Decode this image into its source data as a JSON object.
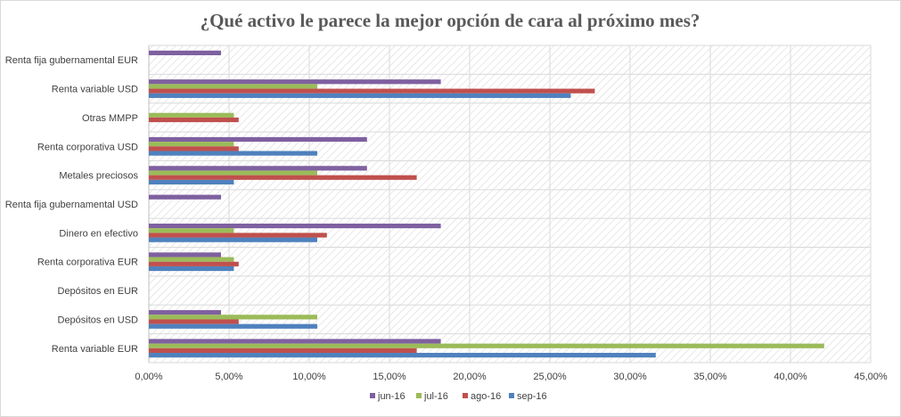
{
  "chart_data": {
    "type": "bar",
    "orientation": "horizontal",
    "title": "¿Qué activo le parece la mejor opción de cara al próximo mes?",
    "categories": [
      "Renta fija gubernamental EUR",
      "Renta variable USD",
      "Otras MMPP",
      "Renta corporativa USD",
      "Metales preciosos",
      "Renta fija gubernamental USD",
      "Dinero en efectivo",
      "Renta corporativa EUR",
      "Depósitos en EUR",
      "Depósitos en USD",
      "Renta variable EUR"
    ],
    "series": [
      {
        "name": "jun-16",
        "color": "#7f60a0",
        "values": [
          4.5,
          18.2,
          0,
          13.6,
          13.6,
          4.5,
          18.2,
          4.5,
          0,
          4.5,
          18.2
        ]
      },
      {
        "name": "jul-16",
        "color": "#9bbb59",
        "values": [
          0,
          10.5,
          5.3,
          5.3,
          10.5,
          0,
          5.3,
          5.3,
          0,
          10.5,
          42.1
        ]
      },
      {
        "name": "ago-16",
        "color": "#c0504d",
        "values": [
          0,
          27.8,
          5.6,
          5.6,
          16.7,
          0,
          11.1,
          5.6,
          0,
          5.6,
          16.7
        ]
      },
      {
        "name": "sep-16",
        "color": "#4f81bd",
        "values": [
          0,
          26.3,
          0,
          10.5,
          5.3,
          0,
          10.5,
          5.3,
          0,
          10.5,
          31.6
        ]
      }
    ],
    "xticks": [
      "0,00%",
      "5,00%",
      "10,00%",
      "15,00%",
      "20,00%",
      "25,00%",
      "30,00%",
      "35,00%",
      "40,00%",
      "45,00%"
    ],
    "xlim": [
      0,
      45
    ],
    "xlabel": "",
    "ylabel": "",
    "legend_position": "bottom",
    "grid": true
  }
}
